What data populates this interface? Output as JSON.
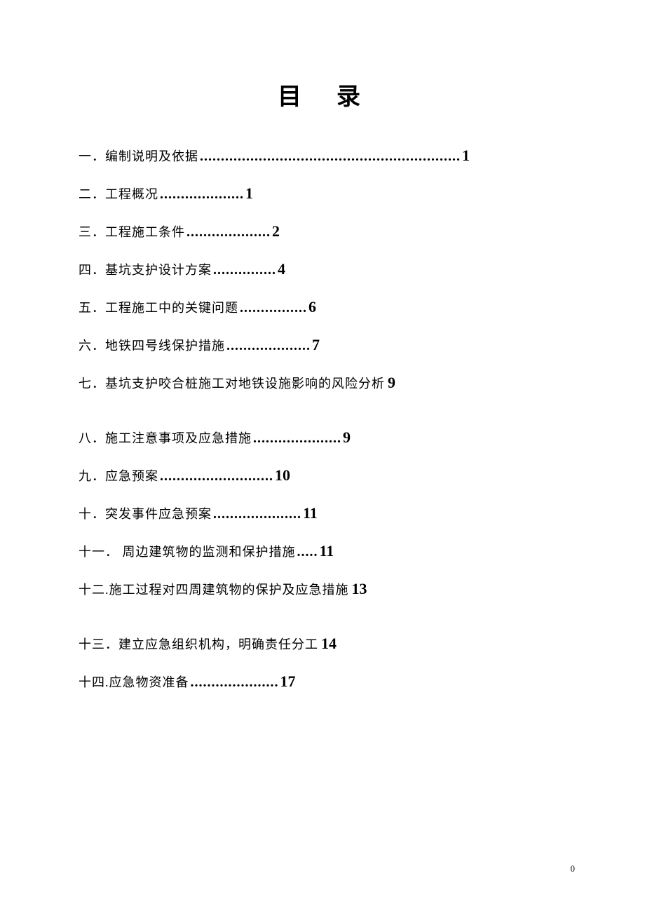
{
  "title": "目录",
  "pageNumber": "0",
  "entries": [
    {
      "label": "一．编制说明及依据",
      "dots": "..............................................................",
      "page": "1",
      "extraGap": false
    },
    {
      "label": "二．工程概况",
      "dots": "....................",
      "page": "1",
      "extraGap": false
    },
    {
      "label": "三．工程施工条件 ",
      "dots": "....................",
      "page": "2",
      "extraGap": false
    },
    {
      "label": "四．基坑支护设计方案 ",
      "dots": "...............",
      "page": "4",
      "extraGap": false
    },
    {
      "label": "五．工程施工中的关键问题 ",
      "dots": "................",
      "page": "6",
      "extraGap": false
    },
    {
      "label": "六．地铁四号线保护措施",
      "dots": "....................",
      "page": "7",
      "extraGap": false
    },
    {
      "label": "七．基坑支护咬合桩施工对地铁设施影响的风险分析",
      "dots": "",
      "page": "9",
      "extraGap": true
    },
    {
      "label": "八．施工注意事项及应急措施 ",
      "dots": ".....................",
      "page": "9",
      "extraGap": false
    },
    {
      "label": "九．应急预案",
      "dots": "...........................",
      "page": "10",
      "extraGap": false
    },
    {
      "label": "十．突发事件应急预案 ",
      "dots": ".....................",
      "page": "11",
      "extraGap": false
    },
    {
      "label": "十一． 周边建筑物的监测和保护措施",
      "dots": ".....",
      "page": "11",
      "extraGap": false
    },
    {
      "label": "十二.施工过程对四周建筑物的保护及应急措施",
      "dots": "",
      "page": "13",
      "extraGap": true
    },
    {
      "label": "十三．建立应急组织机构，明确责任分工",
      "dots": "",
      "page": "14",
      "extraGap": false
    },
    {
      "label": "十四.应急物资准备 ",
      "dots": ".....................",
      "page": "17",
      "extraGap": false
    }
  ],
  "colors": {
    "background": "#ffffff",
    "text": "#000000"
  },
  "fonts": {
    "titleSize": 34,
    "labelSize": 18,
    "pageSize": 22,
    "pageNumberSize": 13
  }
}
